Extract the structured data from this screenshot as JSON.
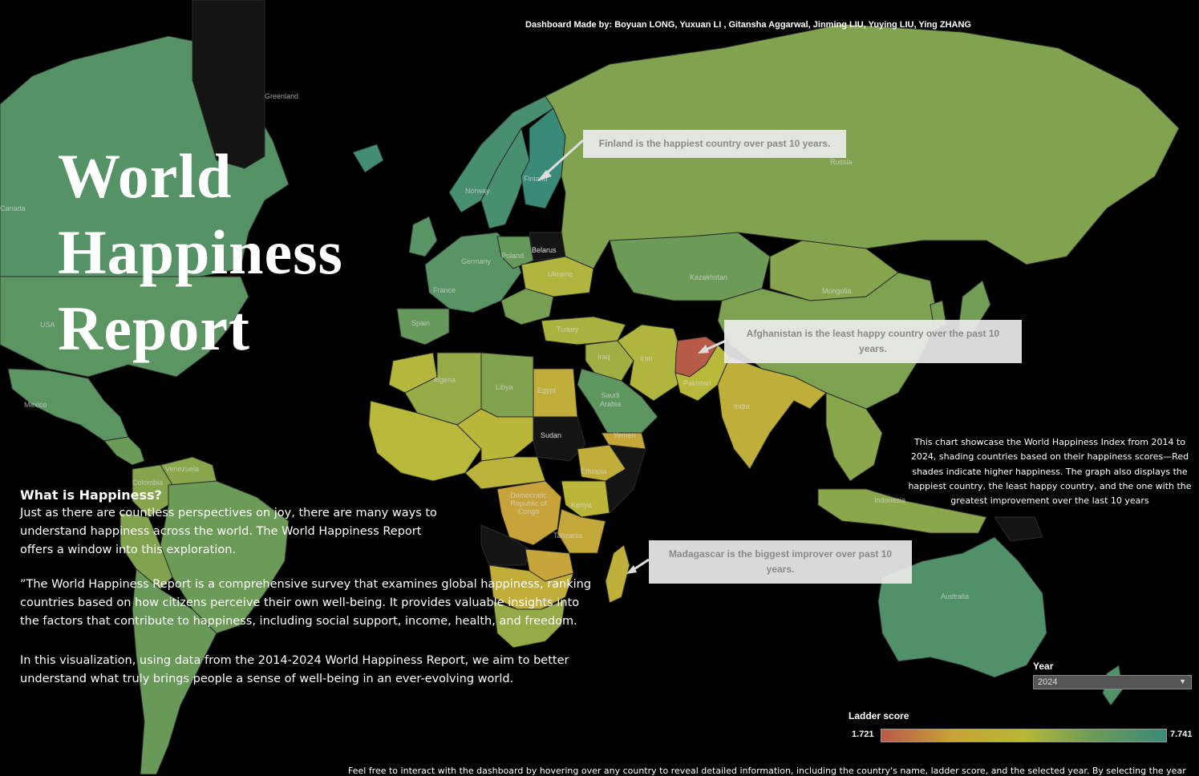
{
  "credits": "Dashboard Made by: Boyuan LONG, Yuxuan LI , Gitansha Aggarwal, Jinming LIU, Yuying LIU, Ying ZHANG",
  "title": [
    "World",
    "Happiness",
    "Report"
  ],
  "callouts": {
    "finland": "Finland is the happiest country over past 10 years.",
    "afghanistan": "Afghanistan is the least happy country over the past 10 years.",
    "madagascar": "Madagascar is the biggest improver over past 10 years."
  },
  "intro": {
    "heading": "What is Happiness?",
    "p1": "Just as there are countless perspectives on joy, there are many ways to understand happiness across the world. The World Happiness Report offers a window into this exploration.",
    "p2": "”The World Happiness Report is a comprehensive survey that examines global happiness, ranking countries based on how citizens perceive their own well-being. It provides valuable insights into the factors that contribute to happiness, including social support, income, health, and freedom.",
    "p3": "In this visualization, using data from the 2014-2024 World Happiness Report, we aim to better understand what truly brings people a sense of well-being in an ever-evolving world."
  },
  "description": "This chart showcase the World Happiness Index from 2014 to 2024, shading countries based on their happiness scores—Red shades indicate higher happiness. The graph also displays the happiest country, the least happy country, and the one with the greatest improvement over the last 10 years",
  "year_filter": {
    "label": "Year",
    "value": "2024"
  },
  "legend": {
    "title": "Ladder score",
    "min": "1.721",
    "max": "7.741",
    "colors": [
      "#b85a48",
      "#c9a23a",
      "#b8b83a",
      "#6a9a58",
      "#3a8a78"
    ]
  },
  "footer": "Feel free to interact with the dashboard by hovering over any country to reveal detailed information, including the country's name, ladder score, and the selected year. By selecting the year",
  "country_labels": [
    "Greenland",
    "Russia",
    "Finland",
    "Norway",
    "Belarus",
    "Ukraine",
    "Poland",
    "Germany",
    "France",
    "Spain",
    "Turkey",
    "Kazakhstan",
    "Mongolia",
    "Iran",
    "Afghanistan",
    "Pakistan",
    "India",
    "Iraq",
    "Egypt",
    "Libya",
    "Algeria",
    "Sudan",
    "Saudi Arabia",
    "Yemen",
    "Democratic Republic of Congo",
    "Ethiopia",
    "Kenya",
    "Tanzania",
    "Madagascar",
    "USA",
    "Mexico",
    "Venezuela",
    "Colombia",
    "Brazil",
    "Australia",
    "China",
    "Canada",
    "Indonesia"
  ],
  "country_scores": {
    "Greenland": null,
    "Canada": 6.9,
    "USA": 6.7,
    "Mexico": 6.7,
    "CentralAmerica": 6.2,
    "Venezuela": 5.6,
    "Colombia": 5.7,
    "Brazil": 6.2,
    "SouthAmericaSouth": 6.3,
    "Peru": 5.8,
    "Norway": 7.3,
    "Finland": 7.741,
    "Sweden": 7.3,
    "Iceland": 7.5,
    "UK": 6.8,
    "WestEurope": 6.8,
    "Spain": 6.4,
    "Poland": 6.4,
    "Belarus": null,
    "Ukraine": 4.9,
    "Russia": 5.8,
    "Kazakhstan": 6.2,
    "Mongolia": 5.7,
    "China": 5.9,
    "Turkey": 5.0,
    "Balkans": 6.0,
    "Iran": 4.9,
    "Afghanistan": 1.721,
    "Pakistan": 4.7,
    "India": 4.1,
    "SEAsia": 5.6,
    "Indonesia": 5.6,
    "Japan": 6.1,
    "Korea": 6.0,
    "Iraq": 5.2,
    "SaudiArabia": 6.6,
    "Yemen": 3.6,
    "Egypt": 3.98,
    "Libya": 5.8,
    "Algeria": 5.4,
    "Morocco": 4.8,
    "WestAfrica": 4.7,
    "Sahel": 4.6,
    "Sudan": null,
    "CentralAfrica": 4.4,
    "DRCongo": 3.3,
    "Ethiopia": 4.0,
    "Somalia": null,
    "Kenya": 4.5,
    "Tanzania": 3.7,
    "Angola": null,
    "Zambia": 3.5,
    "SouthernAfrica": 4.0,
    "SouthAfrica": 5.4,
    "Madagascar": 4.2,
    "Australia": 7.06,
    "NewZealand": 7.0,
    "PNG": null
  }
}
